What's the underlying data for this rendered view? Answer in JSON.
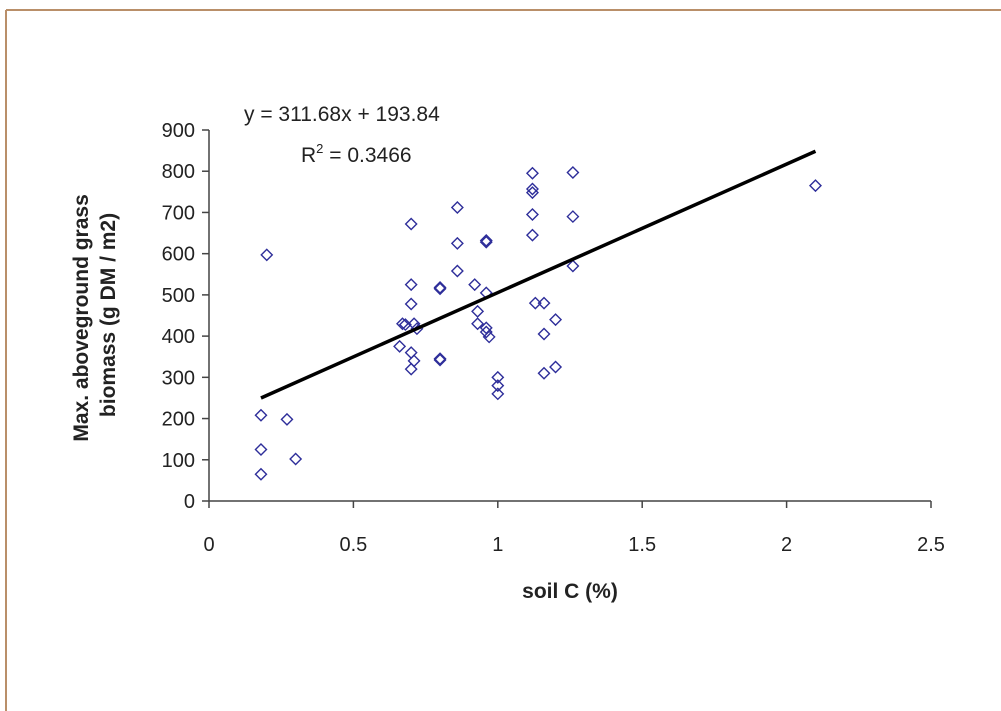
{
  "colors": {
    "frame": "#b98f69",
    "marker": "#2e2e9a",
    "trendline": "#000000",
    "axis": "#444444",
    "text": "#222222"
  },
  "chart_data": {
    "type": "scatter",
    "title": "",
    "xlabel": "soil C (%)",
    "ylabel_lines": [
      "Max. aboveground grass",
      "biomass (g DM / m2)"
    ],
    "xlim": [
      0,
      2.5
    ],
    "ylim": [
      0,
      900
    ],
    "x_ticks": [
      0,
      0.5,
      1,
      1.5,
      2,
      2.5
    ],
    "x_tick_labels": [
      "0",
      "0.5",
      "1",
      "1.5",
      "2",
      "2.5"
    ],
    "y_ticks": [
      0,
      100,
      200,
      300,
      400,
      500,
      600,
      700,
      800,
      900
    ],
    "y_tick_labels": [
      "0",
      "100",
      "200",
      "300",
      "400",
      "500",
      "600",
      "700",
      "800",
      "900"
    ],
    "grid": false,
    "legend": "none",
    "annotations": {
      "equation": "y = 311.68x + 193.84",
      "r2_prefix": "R",
      "r2_sup": "2",
      "r2_value": " = 0.3466"
    },
    "trendline": {
      "slope": 311.68,
      "intercept": 193.84,
      "x_range": [
        0.18,
        2.1
      ]
    },
    "series": [
      {
        "points": [
          [
            0.18,
            65
          ],
          [
            0.18,
            125
          ],
          [
            0.18,
            208
          ],
          [
            0.2,
            597
          ],
          [
            0.27,
            198
          ],
          [
            0.3,
            102
          ],
          [
            0.66,
            375
          ],
          [
            0.67,
            430
          ],
          [
            0.68,
            428
          ],
          [
            0.7,
            672
          ],
          [
            0.7,
            525
          ],
          [
            0.7,
            478
          ],
          [
            0.71,
            430
          ],
          [
            0.72,
            418
          ],
          [
            0.7,
            360
          ],
          [
            0.71,
            340
          ],
          [
            0.7,
            320
          ],
          [
            0.8,
            515
          ],
          [
            0.8,
            518
          ],
          [
            0.8,
            345
          ],
          [
            0.8,
            342
          ],
          [
            0.86,
            712
          ],
          [
            0.86,
            625
          ],
          [
            0.86,
            558
          ],
          [
            0.92,
            525
          ],
          [
            0.93,
            460
          ],
          [
            0.93,
            430
          ],
          [
            0.96,
            632
          ],
          [
            0.96,
            628
          ],
          [
            0.96,
            505
          ],
          [
            0.96,
            420
          ],
          [
            0.96,
            410
          ],
          [
            0.97,
            398
          ],
          [
            1.0,
            300
          ],
          [
            1.0,
            280
          ],
          [
            1.0,
            260
          ],
          [
            1.12,
            795
          ],
          [
            1.12,
            757
          ],
          [
            1.12,
            748
          ],
          [
            1.12,
            695
          ],
          [
            1.12,
            645
          ],
          [
            1.13,
            480
          ],
          [
            1.16,
            480
          ],
          [
            1.16,
            405
          ],
          [
            1.16,
            310
          ],
          [
            1.2,
            325
          ],
          [
            1.2,
            440
          ],
          [
            1.26,
            797
          ],
          [
            1.26,
            690
          ],
          [
            1.26,
            570
          ],
          [
            2.1,
            765
          ]
        ]
      }
    ]
  }
}
